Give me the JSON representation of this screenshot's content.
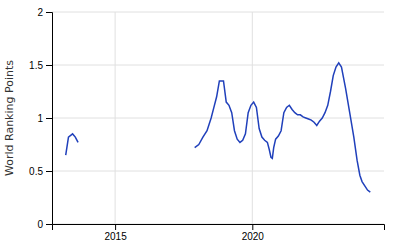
{
  "chart_data": {
    "type": "line",
    "ylabel": "World Ranking Points",
    "xlim": [
      2012.7,
      2024.8
    ],
    "xticks": [
      2015,
      2020
    ],
    "ylim": [
      0,
      2
    ],
    "yticks": [
      0,
      0.5,
      1,
      1.5,
      2
    ],
    "grid": true,
    "series": [
      {
        "color": "#2040bb",
        "x": [
          2013.2,
          2013.3,
          2013.45,
          2013.55,
          2013.65
        ],
        "values": [
          0.65,
          0.82,
          0.85,
          0.82,
          0.77
        ]
      },
      {
        "color": "#2040bb",
        "x": [
          2017.9,
          2018.05,
          2018.2,
          2018.35,
          2018.5,
          2018.6,
          2018.7,
          2018.8,
          2018.95,
          2019.05,
          2019.15,
          2019.25,
          2019.35,
          2019.45,
          2019.55,
          2019.65,
          2019.75,
          2019.85,
          2019.95,
          2020.05,
          2020.15,
          2020.25,
          2020.35,
          2020.45,
          2020.55,
          2020.62,
          2020.68,
          2020.73,
          2020.78,
          2020.85,
          2020.95,
          2021.05,
          2021.15,
          2021.25,
          2021.35,
          2021.45,
          2021.55,
          2021.65,
          2021.75,
          2021.85,
          2021.95,
          2022.05,
          2022.15,
          2022.25,
          2022.35,
          2022.45,
          2022.55,
          2022.65,
          2022.75,
          2022.85,
          2022.95,
          2023.05,
          2023.15,
          2023.25,
          2023.4,
          2023.55,
          2023.7,
          2023.82,
          2023.92,
          2024.0,
          2024.1,
          2024.2,
          2024.3
        ],
        "values": [
          0.72,
          0.75,
          0.82,
          0.88,
          1.0,
          1.1,
          1.2,
          1.35,
          1.35,
          1.15,
          1.12,
          1.05,
          0.88,
          0.8,
          0.77,
          0.79,
          0.85,
          1.05,
          1.12,
          1.15,
          1.1,
          0.9,
          0.82,
          0.79,
          0.77,
          0.7,
          0.63,
          0.62,
          0.72,
          0.8,
          0.83,
          0.88,
          1.05,
          1.1,
          1.12,
          1.08,
          1.05,
          1.03,
          1.03,
          1.01,
          1.0,
          0.99,
          0.98,
          0.96,
          0.93,
          0.97,
          1.0,
          1.05,
          1.12,
          1.25,
          1.4,
          1.48,
          1.52,
          1.48,
          1.28,
          1.05,
          0.82,
          0.6,
          0.46,
          0.4,
          0.36,
          0.32,
          0.3
        ]
      }
    ]
  }
}
